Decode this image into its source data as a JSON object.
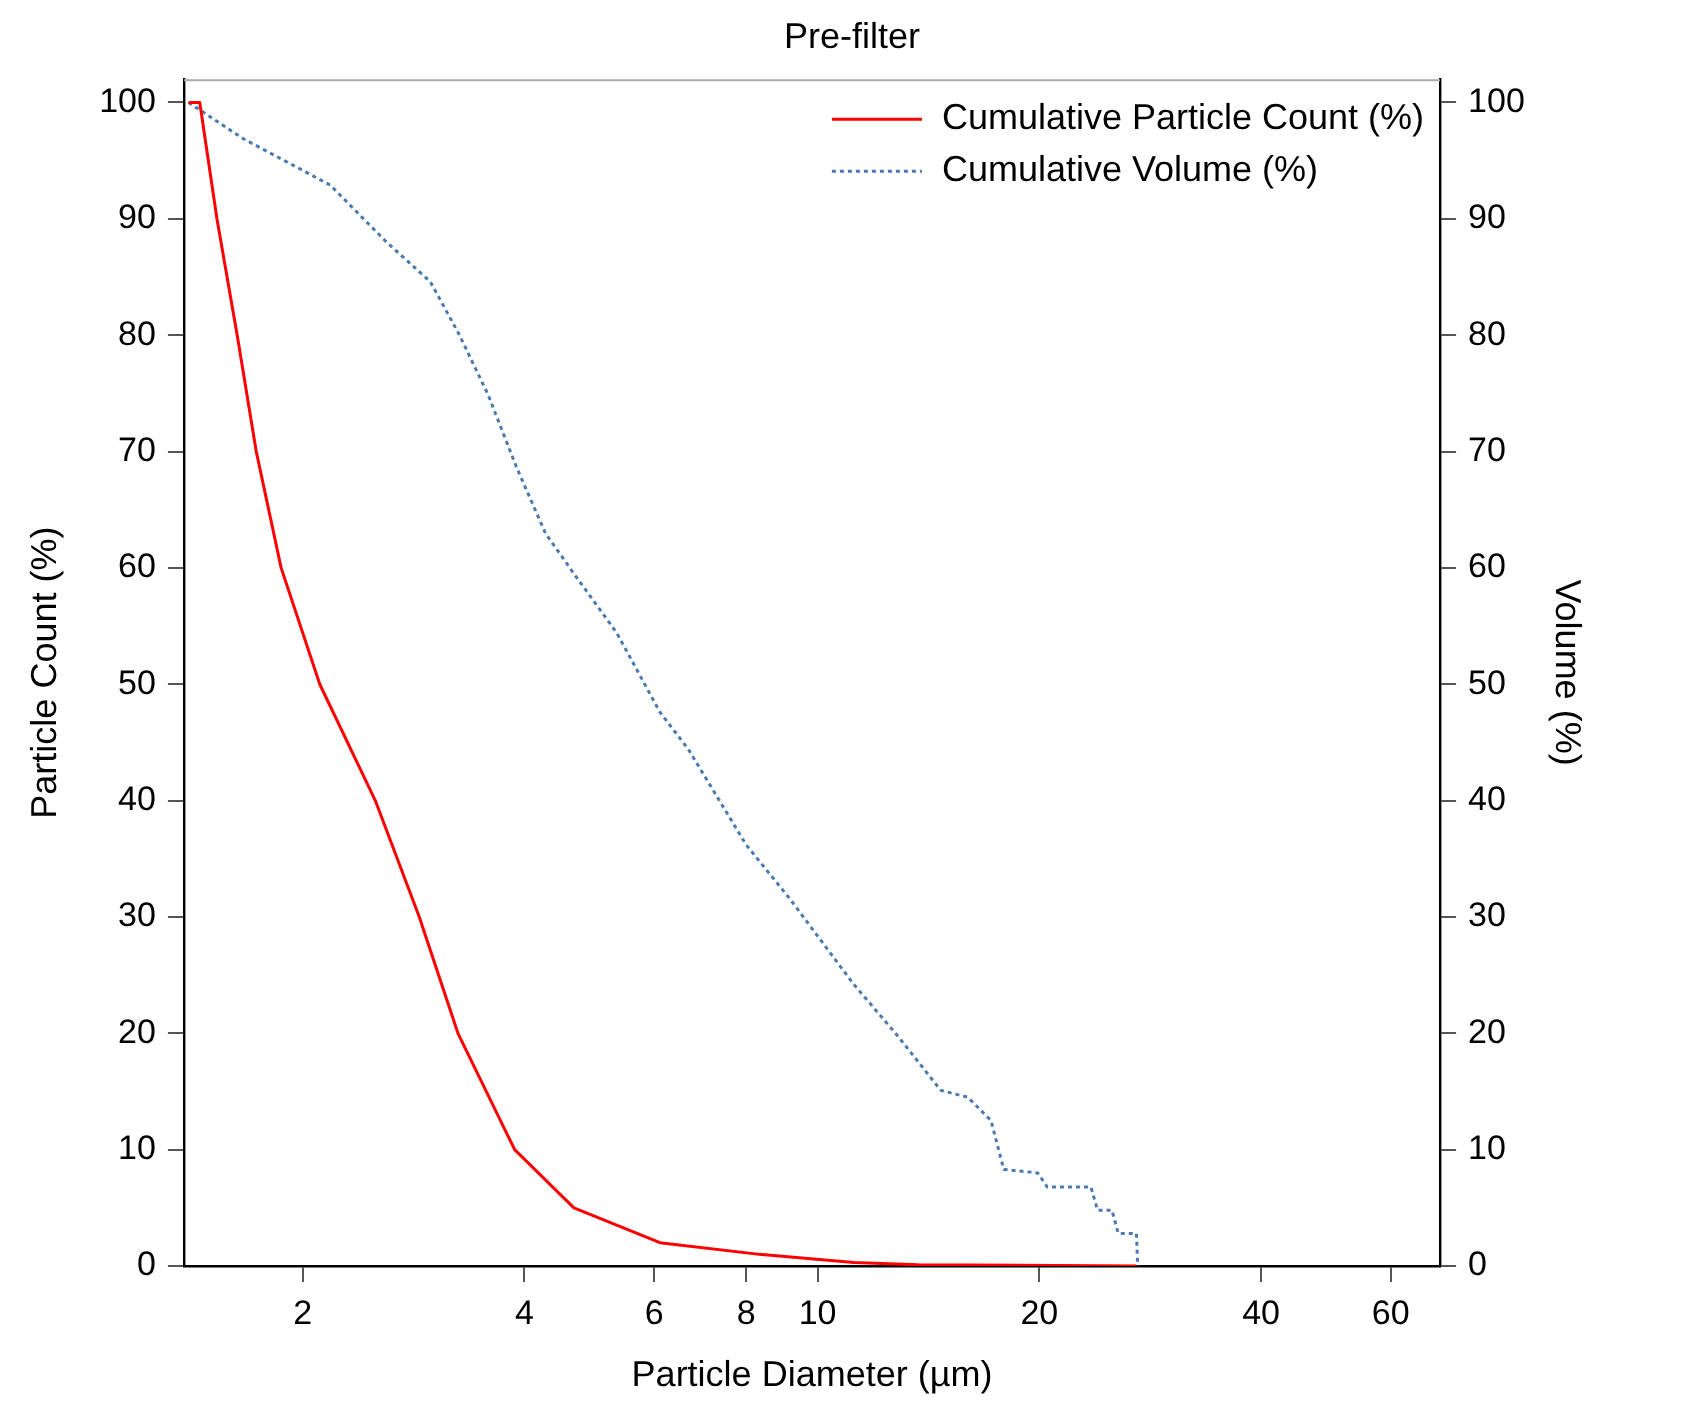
{
  "chart_data": {
    "type": "line",
    "title": "Pre-filter",
    "xlabel": "Particle Diameter (µm)",
    "ylabel": "Particle Count (%)",
    "y2label": "Volume (%)",
    "log": "x",
    "grid": false,
    "legend": "top right",
    "marker": "none",
    "xlim": [
      1.38,
      70
    ],
    "xticks": [
      2,
      4,
      6,
      8,
      10,
      20,
      40,
      60
    ],
    "ylim": [
      0,
      102
    ],
    "yticks": [
      0,
      10,
      20,
      30,
      40,
      50,
      60,
      70,
      80,
      90,
      100
    ],
    "y2lim": [
      0,
      102
    ],
    "y2ticks": [
      0,
      10,
      20,
      30,
      40,
      50,
      60,
      70,
      80,
      90,
      100
    ],
    "series": [
      {
        "name": "Cumulative Particle Count (%)",
        "color": "#ff0000",
        "line_style": "solid",
        "x": [
          1.4,
          1.45,
          1.53,
          1.63,
          1.73,
          1.87,
          2.11,
          2.51,
          2.88,
          3.25,
          3.88,
          4.67,
          6.11,
          8.34,
          11.2,
          13.7,
          27.1
        ],
        "values": [
          100,
          100,
          90,
          80,
          70,
          60,
          50,
          40,
          30,
          20,
          10,
          5,
          2,
          1,
          0.3,
          0.1,
          0
        ]
      },
      {
        "name": "Cumulative Volume (%)",
        "color": "#4a7ab0",
        "line_style": "dotted",
        "axis": "y2",
        "x": [
          1.4,
          1.66,
          2.18,
          2.6,
          2.98,
          3.26,
          3.57,
          3.9,
          4.27,
          4.67,
          5.34,
          6.11,
          6.68,
          8.0,
          9.16,
          11.2,
          12.8,
          14.7,
          16.0,
          17.2,
          17.9,
          19.9,
          20.5,
          23.5,
          24.0,
          25.1,
          25.6,
          27.1,
          27.2
        ],
        "values": [
          100,
          96.9,
          92.9,
          88.0,
          84.6,
          80.1,
          74.9,
          68.7,
          63.0,
          59.5,
          54.4,
          47.6,
          44.4,
          36.2,
          31.6,
          24.2,
          19.9,
          15.1,
          14.5,
          12.5,
          8.3,
          8.0,
          6.8,
          6.8,
          4.8,
          4.8,
          2.8,
          2.8,
          0
        ]
      }
    ]
  }
}
